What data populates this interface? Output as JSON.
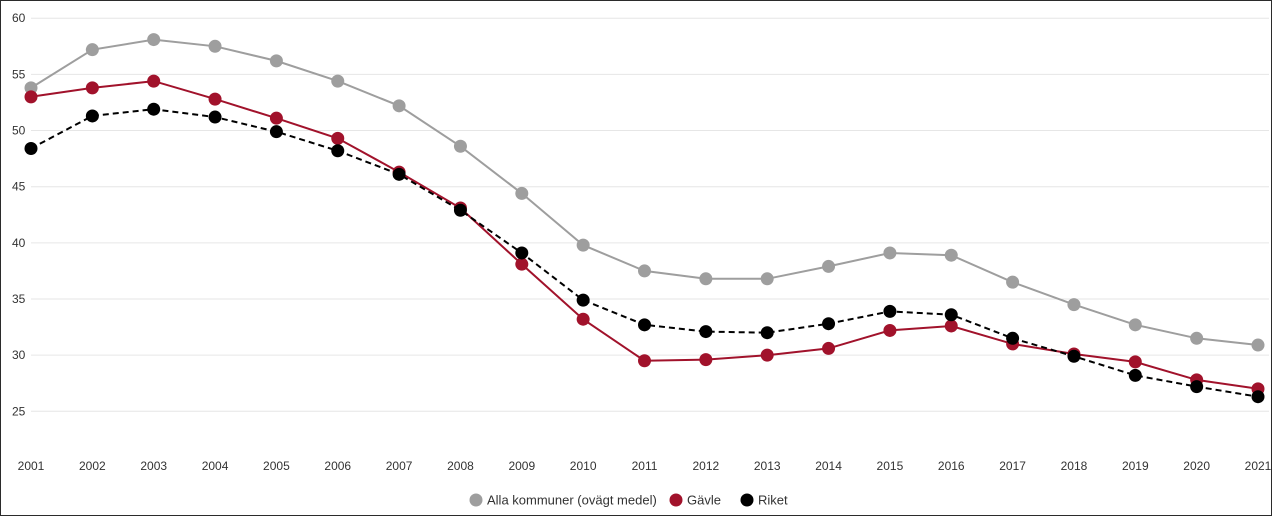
{
  "chart_data": {
    "type": "line",
    "x": [
      2001,
      2002,
      2003,
      2004,
      2005,
      2006,
      2007,
      2008,
      2009,
      2010,
      2011,
      2012,
      2013,
      2014,
      2015,
      2016,
      2017,
      2018,
      2019,
      2020,
      2021
    ],
    "x_tick_labels": [
      "2001",
      "2002",
      "2003",
      "2004",
      "2005",
      "2006",
      "2007",
      "2008",
      "2009",
      "2010",
      "2011",
      "2012",
      "2013",
      "2014",
      "2015",
      "2016",
      "2017",
      "2018",
      "2019",
      "2020",
      "2021"
    ],
    "y_ticks": [
      25,
      30,
      35,
      40,
      45,
      50,
      55,
      60
    ],
    "y_tick_labels": [
      "25",
      "30",
      "35",
      "40",
      "45",
      "50",
      "55",
      "60"
    ],
    "ylim": [
      22,
      61
    ],
    "grid": true,
    "legend_position": "bottom-center",
    "series": [
      {
        "name": "Alla kommuner (ovägt medel)",
        "color": "#9e9e9e",
        "dash": false,
        "values": [
          53.8,
          57.2,
          58.1,
          57.5,
          56.2,
          54.4,
          52.2,
          48.6,
          44.4,
          39.8,
          37.5,
          36.8,
          36.8,
          37.9,
          39.1,
          38.9,
          36.5,
          34.5,
          32.7,
          31.5,
          30.9
        ]
      },
      {
        "name": "Gävle",
        "color": "#a1122b",
        "dash": false,
        "values": [
          53.0,
          53.8,
          54.4,
          52.8,
          51.1,
          49.3,
          46.3,
          43.1,
          38.1,
          33.2,
          29.5,
          29.6,
          30.0,
          30.6,
          32.2,
          32.6,
          31.0,
          30.1,
          29.4,
          27.8,
          27.0
        ]
      },
      {
        "name": "Riket",
        "color": "#000000",
        "dash": true,
        "values": [
          48.4,
          51.3,
          51.9,
          51.2,
          49.9,
          48.2,
          46.1,
          42.9,
          39.1,
          34.9,
          32.7,
          32.1,
          32.0,
          32.8,
          33.9,
          33.6,
          31.5,
          29.9,
          28.2,
          27.2,
          26.3
        ]
      }
    ]
  }
}
